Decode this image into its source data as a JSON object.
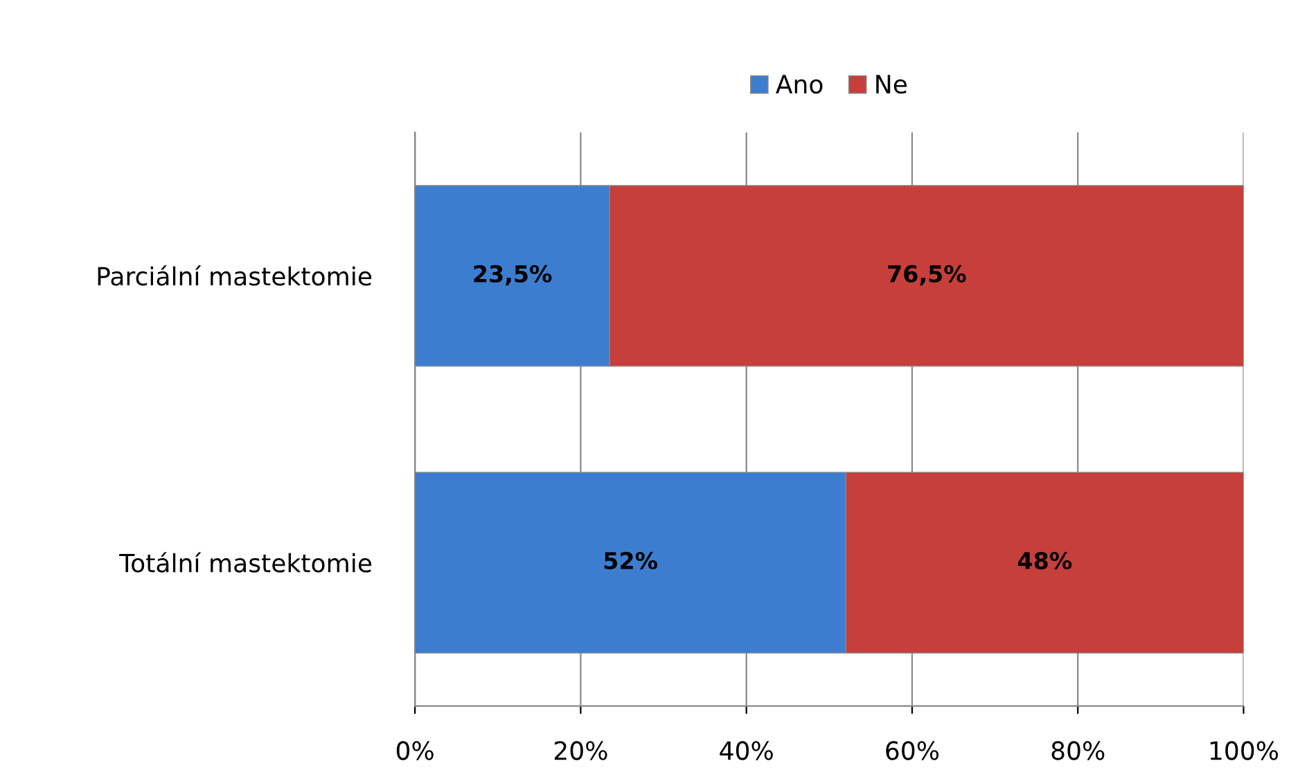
{
  "chart_data": {
    "type": "bar",
    "orientation": "horizontal",
    "stacked": true,
    "categories": [
      "Parciální mastektomie",
      "Totální mastektomie"
    ],
    "series": [
      {
        "name": "Ano",
        "color": "#3c7dd0",
        "values": [
          23.5,
          52
        ],
        "value_labels": [
          "23,5%",
          "52%"
        ]
      },
      {
        "name": "Ne",
        "color": "#c63f3b",
        "values": [
          76.5,
          48
        ],
        "value_labels": [
          "76,5%",
          "48%"
        ]
      }
    ],
    "xlim": [
      0,
      100
    ],
    "xticks": [
      {
        "value": 0,
        "label": "0%"
      },
      {
        "value": 20,
        "label": "20%"
      },
      {
        "value": 40,
        "label": "40%"
      },
      {
        "value": 60,
        "label": "60%"
      },
      {
        "value": 80,
        "label": "80%"
      },
      {
        "value": 100,
        "label": "100%"
      }
    ],
    "grid": "x",
    "legend": "top"
  }
}
